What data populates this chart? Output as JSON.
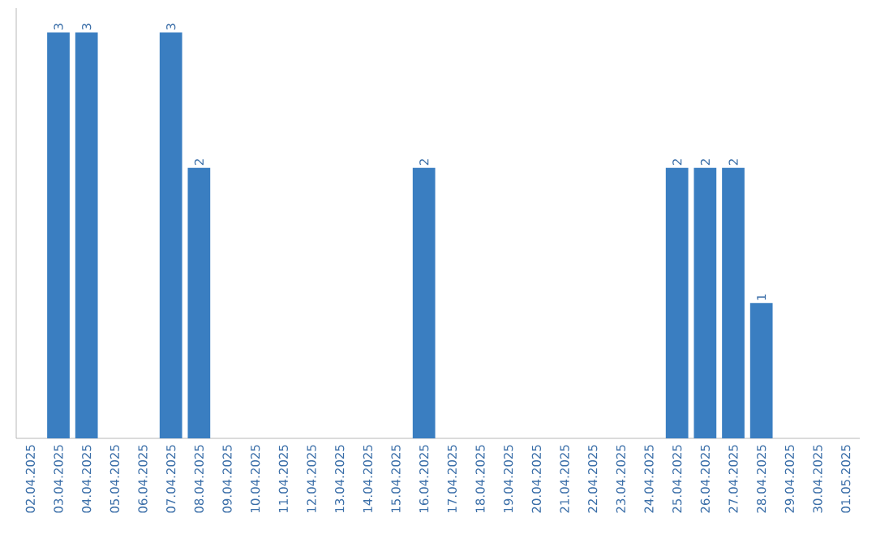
{
  "chart_data": {
    "type": "bar",
    "categories": [
      "02.04.2025",
      "03.04.2025",
      "04.04.2025",
      "05.04.2025",
      "06.04.2025",
      "07.04.2025",
      "08.04.2025",
      "09.04.2025",
      "10.04.2025",
      "11.04.2025",
      "12.04.2025",
      "13.04.2025",
      "14.04.2025",
      "15.04.2025",
      "16.04.2025",
      "17.04.2025",
      "18.04.2025",
      "19.04.2025",
      "20.04.2025",
      "21.04.2025",
      "22.04.2025",
      "23.04.2025",
      "24.04.2025",
      "25.04.2025",
      "26.04.2025",
      "27.04.2025",
      "28.04.2025",
      "29.04.2025",
      "30.04.2025",
      "01.05.2025"
    ],
    "values": [
      0,
      3,
      3,
      0,
      0,
      3,
      2,
      0,
      0,
      0,
      0,
      0,
      0,
      0,
      2,
      0,
      0,
      0,
      0,
      0,
      0,
      0,
      0,
      2,
      2,
      2,
      1,
      0,
      0,
      0
    ],
    "value_labels": [
      null,
      "3",
      "3",
      null,
      null,
      "3",
      "2",
      null,
      null,
      null,
      null,
      null,
      null,
      null,
      "2",
      null,
      null,
      null,
      null,
      null,
      null,
      null,
      null,
      "2",
      "2",
      "2",
      "1",
      null,
      null,
      null
    ],
    "color": "#3a7ec1"
  }
}
